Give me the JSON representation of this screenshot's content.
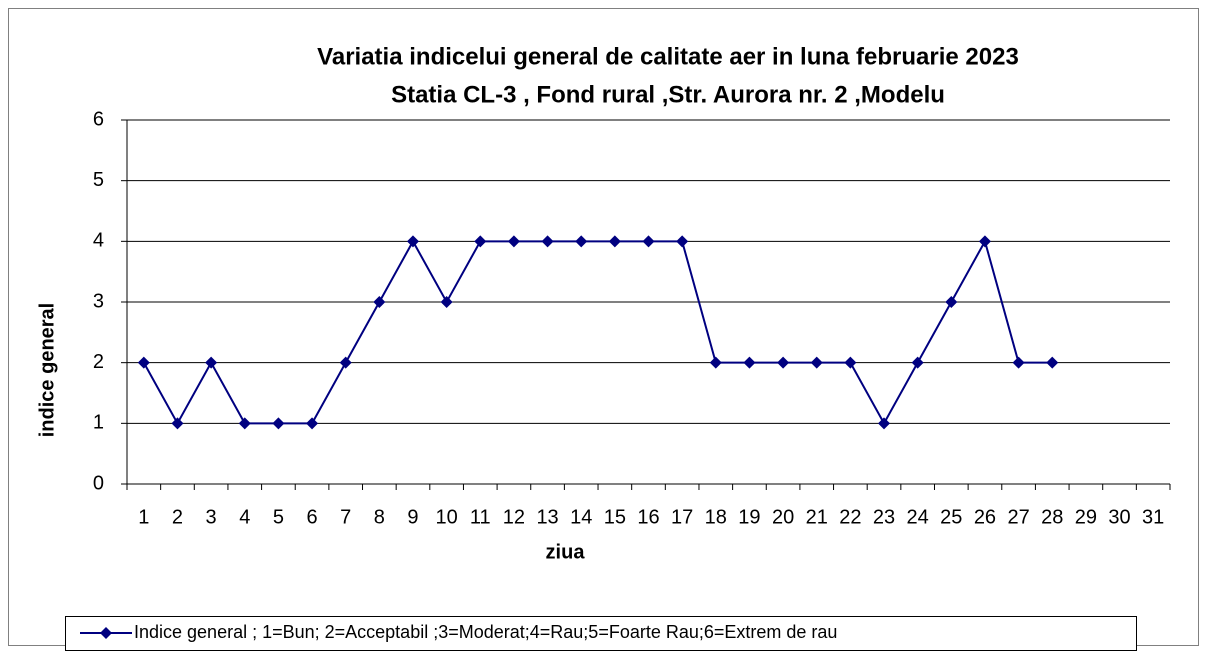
{
  "chart_data": {
    "type": "line",
    "title": "Variatia indicelui general de calitate aer in luna februarie 2023",
    "subtitle": "Statia CL-3 , Fond rural ,Str. Aurora nr. 2 ,Modelu",
    "y_label": "indice general",
    "x_label": "ziua",
    "categories": [
      "1",
      "2",
      "3",
      "4",
      "5",
      "6",
      "7",
      "8",
      "9",
      "10",
      "11",
      "12",
      "13",
      "14",
      "15",
      "16",
      "17",
      "18",
      "19",
      "20",
      "21",
      "22",
      "23",
      "24",
      "25",
      "26",
      "27",
      "28",
      "29",
      "30",
      "31"
    ],
    "series": [
      {
        "name": "Indice  general ; 1=Bun; 2=Acceptabil ;3=Moderat;4=Rau;5=Foarte Rau;6=Extrem de rau",
        "color": "#000080",
        "values": [
          2,
          1,
          2,
          1,
          1,
          1,
          2,
          3,
          4,
          3,
          4,
          4,
          4,
          4,
          4,
          4,
          4,
          2,
          2,
          2,
          2,
          2,
          1,
          2,
          3,
          4,
          2,
          2,
          null,
          null,
          null
        ]
      }
    ],
    "ylim": [
      0,
      6
    ],
    "yticks": [
      0,
      1,
      2,
      3,
      4,
      5,
      6
    ],
    "grid": true,
    "legend": "bottom"
  }
}
